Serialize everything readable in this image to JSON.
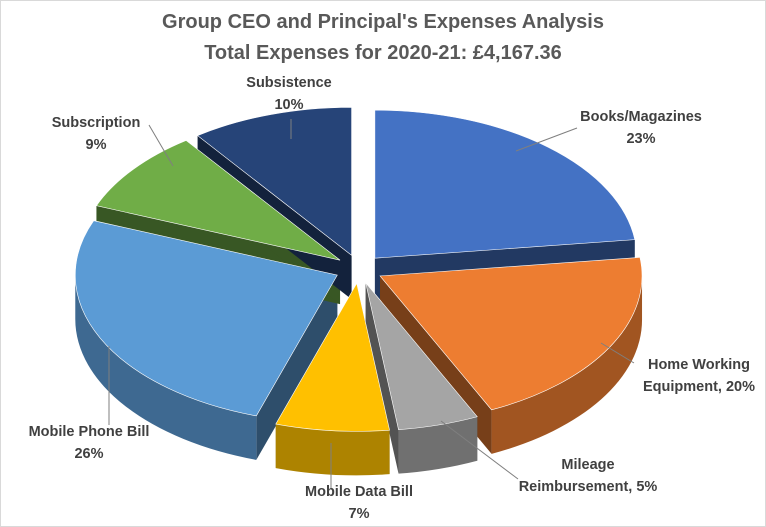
{
  "chart_data": {
    "type": "pie",
    "variant": "3d-exploded",
    "title": "Group CEO and Principal's Expenses Analysis",
    "subtitle": "Total Expenses for 2020-21:  £4,167.36",
    "slices": [
      {
        "label": "Books/Magazines",
        "percent_text": "23%",
        "value": 23,
        "color": "#4472C4"
      },
      {
        "label": "Home Working Equipment, 20%",
        "value": 20,
        "color": "#ED7D31"
      },
      {
        "label": "Mileage Reimbursement, 5%",
        "value": 5,
        "color": "#A5A5A5"
      },
      {
        "label": "Mobile Data Bill",
        "percent_text": "7%",
        "value": 7,
        "color": "#FFC000"
      },
      {
        "label": "Mobile Phone Bill",
        "percent_text": "26%",
        "value": 26,
        "color": "#5B9BD5"
      },
      {
        "label": "Subscription",
        "percent_text": "9%",
        "value": 9,
        "color": "#70AD47"
      },
      {
        "label": "Subsistence",
        "percent_text": "10%",
        "value": 10,
        "color": "#264478"
      }
    ],
    "legend": "none"
  }
}
